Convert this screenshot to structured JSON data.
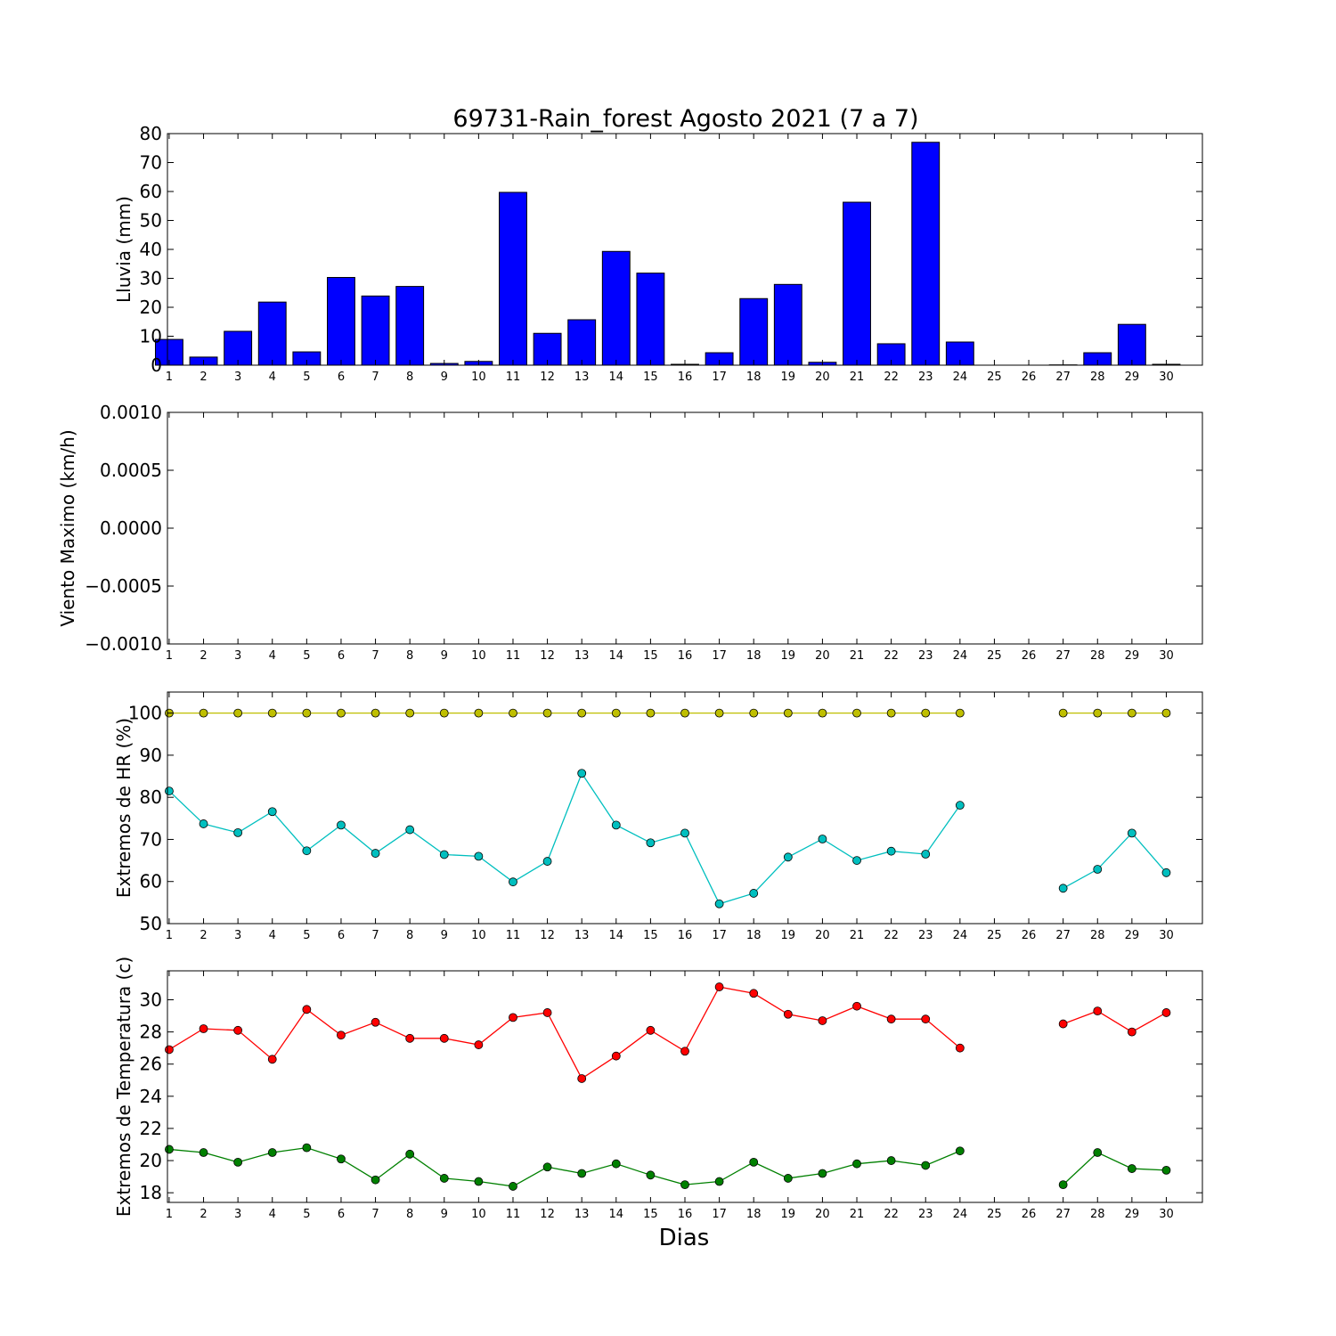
{
  "figure": {
    "title": "69731-Rain_forest Agosto 2021  (7 a 7)",
    "xlabel": "Dias",
    "days": [
      1,
      2,
      3,
      4,
      5,
      6,
      7,
      8,
      9,
      10,
      11,
      12,
      13,
      14,
      15,
      16,
      17,
      18,
      19,
      20,
      21,
      22,
      23,
      24,
      25,
      26,
      27,
      28,
      29,
      30
    ]
  },
  "colors": {
    "bar": "#0000ff",
    "hr_max": "#bfbf00",
    "hr_min": "#00bfbf",
    "temp_max": "#ff0000",
    "temp_min": "#008000"
  },
  "chart_data": [
    {
      "type": "bar",
      "ylabel": "Lluvia (mm)",
      "ylim": [
        0,
        80
      ],
      "yticks": [
        "0",
        "10",
        "20",
        "30",
        "40",
        "50",
        "60",
        "70",
        "80"
      ],
      "ytick_values": [
        0,
        10,
        20,
        30,
        40,
        50,
        60,
        70,
        80
      ],
      "categories": [
        1,
        2,
        3,
        4,
        5,
        6,
        7,
        8,
        9,
        10,
        11,
        12,
        13,
        14,
        15,
        16,
        17,
        18,
        19,
        20,
        21,
        22,
        23,
        24,
        25,
        26,
        27,
        28,
        29,
        30
      ],
      "values": [
        8.9,
        2.8,
        11.7,
        21.8,
        4.6,
        30.3,
        23.9,
        27.2,
        0.6,
        1.3,
        59.7,
        11.0,
        15.7,
        39.3,
        31.8,
        0.3,
        4.3,
        23.0,
        27.9,
        1.0,
        56.3,
        7.4,
        77.0,
        8.0,
        0,
        0,
        0.1,
        4.3,
        14.1,
        0.3
      ]
    },
    {
      "type": "line",
      "ylabel": "Viento Maximo (km/h)",
      "ylim": [
        -0.001,
        0.001
      ],
      "yticks": [
        "0.0010",
        "0.0005",
        "0.0000",
        "−0.0005",
        "−0.0010"
      ],
      "ytick_values": [
        0.001,
        0.0005,
        0,
        -0.0005,
        -0.001
      ],
      "series": []
    },
    {
      "type": "line",
      "ylabel": "Extremos de HR (%)",
      "ylim": [
        50,
        105
      ],
      "yticks": [
        "50",
        "60",
        "70",
        "80",
        "90",
        "100"
      ],
      "ytick_values": [
        50,
        60,
        70,
        80,
        90,
        100
      ],
      "x": [
        1,
        2,
        3,
        4,
        5,
        6,
        7,
        8,
        9,
        10,
        11,
        12,
        13,
        14,
        15,
        16,
        17,
        18,
        19,
        20,
        21,
        22,
        23,
        24,
        25,
        26,
        27,
        28,
        29,
        30
      ],
      "series": [
        {
          "key": "hr_max",
          "values": [
            100,
            100,
            100,
            100,
            100,
            100,
            100,
            100,
            100,
            100,
            100,
            100,
            100,
            100,
            100,
            100,
            100,
            100,
            100,
            100,
            100,
            100,
            100,
            100,
            null,
            null,
            100,
            100,
            100,
            100
          ]
        },
        {
          "key": "hr_min",
          "values": [
            81.5,
            73.7,
            71.6,
            76.6,
            67.3,
            73.4,
            66.7,
            72.3,
            66.4,
            66.0,
            59.9,
            64.8,
            85.7,
            73.4,
            69.2,
            71.5,
            54.7,
            57.2,
            65.8,
            70.1,
            65.0,
            67.2,
            66.5,
            78.1,
            null,
            null,
            58.4,
            62.9,
            71.5,
            62.1
          ]
        }
      ]
    },
    {
      "type": "line",
      "ylabel": "Extremos de Temperatura (c)",
      "ylim": [
        17.4,
        31.8
      ],
      "yticks": [
        "18",
        "20",
        "22",
        "24",
        "26",
        "28",
        "30"
      ],
      "ytick_values": [
        18,
        20,
        22,
        24,
        26,
        28,
        30
      ],
      "x": [
        1,
        2,
        3,
        4,
        5,
        6,
        7,
        8,
        9,
        10,
        11,
        12,
        13,
        14,
        15,
        16,
        17,
        18,
        19,
        20,
        21,
        22,
        23,
        24,
        25,
        26,
        27,
        28,
        29,
        30
      ],
      "series": [
        {
          "key": "temp_max",
          "values": [
            26.9,
            28.2,
            28.1,
            26.3,
            29.4,
            27.8,
            28.6,
            27.6,
            27.6,
            27.2,
            28.9,
            29.2,
            25.1,
            26.5,
            28.1,
            26.8,
            30.8,
            30.4,
            29.1,
            28.7,
            29.6,
            28.8,
            28.8,
            27.0,
            null,
            null,
            28.5,
            29.3,
            28.0,
            29.2
          ]
        },
        {
          "key": "temp_min",
          "values": [
            20.7,
            20.5,
            19.9,
            20.5,
            20.8,
            20.1,
            18.8,
            20.4,
            18.9,
            18.7,
            18.4,
            19.6,
            19.2,
            19.8,
            19.1,
            18.5,
            18.7,
            19.9,
            18.9,
            19.2,
            19.8,
            20.0,
            19.7,
            20.6,
            null,
            null,
            18.5,
            20.5,
            19.5,
            19.4
          ]
        }
      ]
    }
  ]
}
